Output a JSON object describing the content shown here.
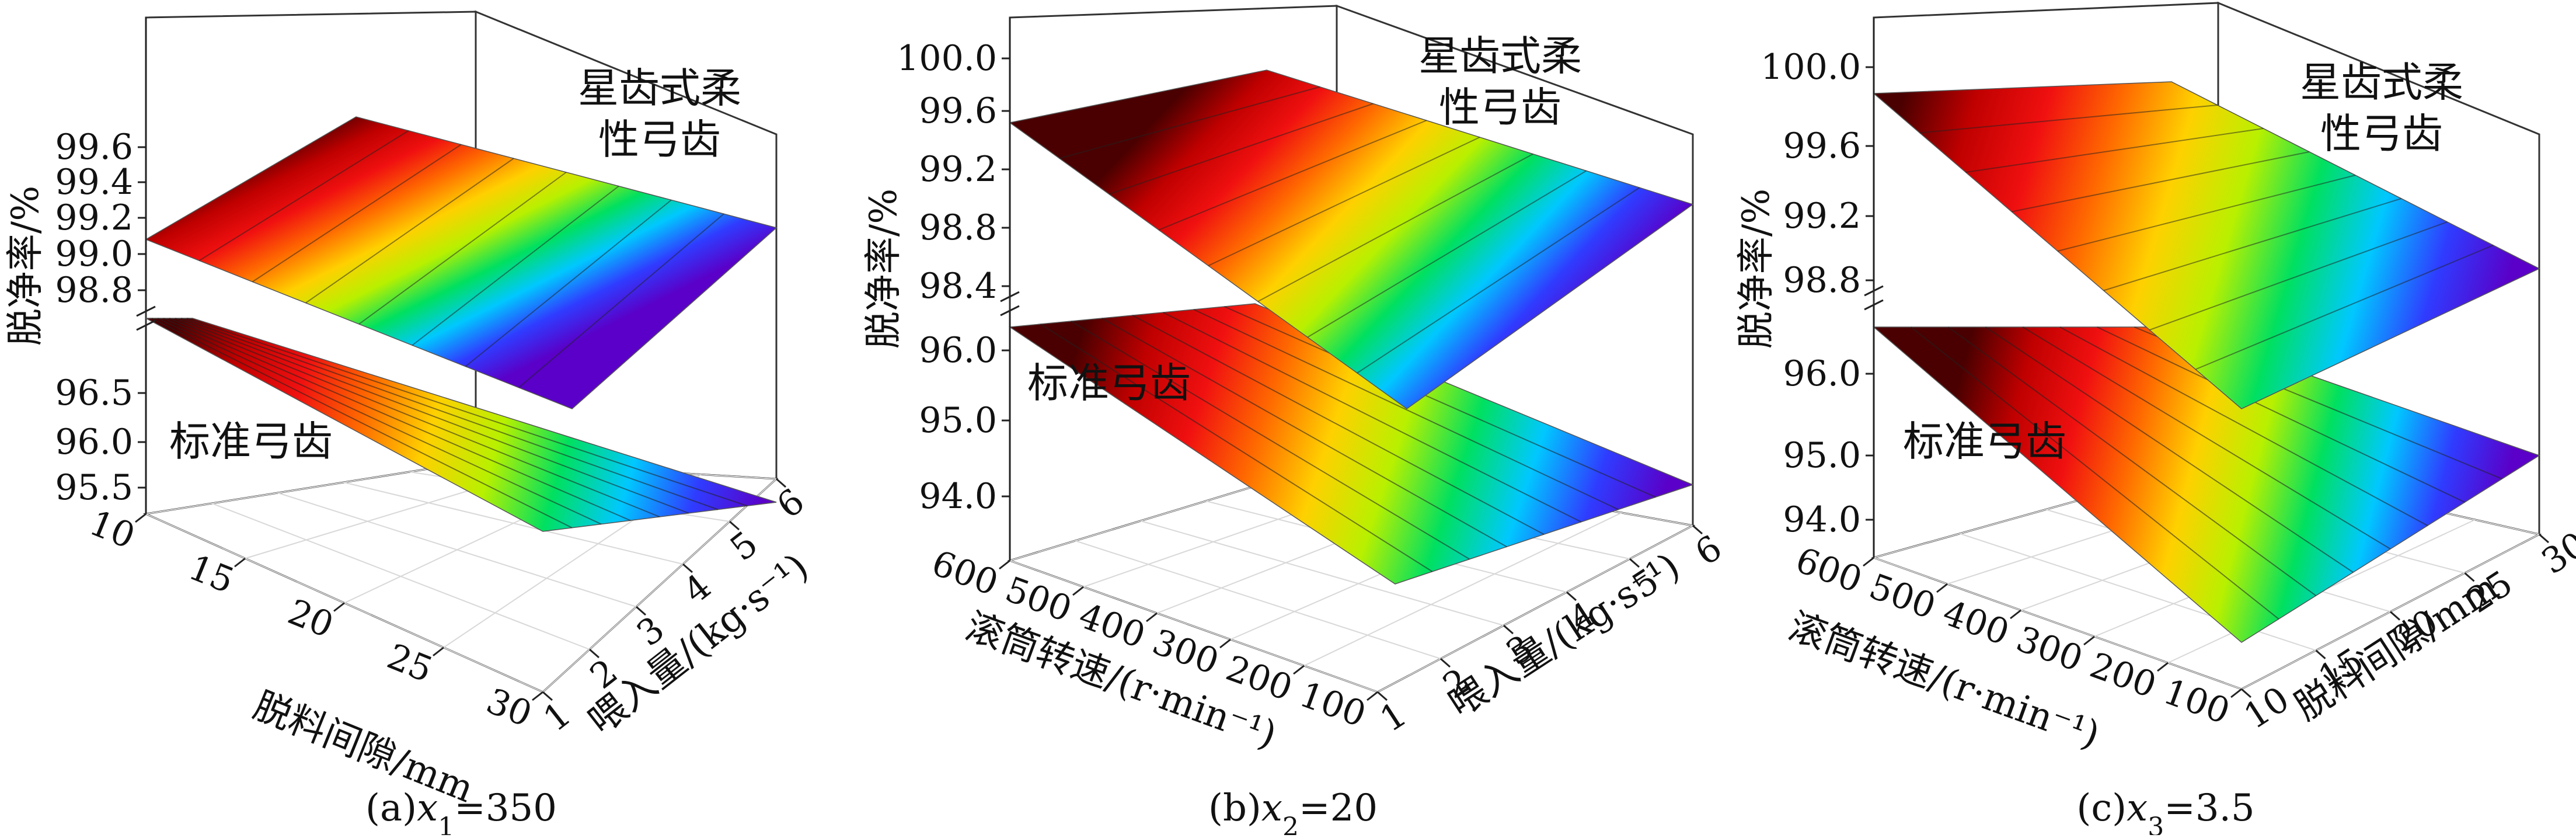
{
  "colorscale": [
    "#5a00c8",
    "#2f3cff",
    "#00c8ff",
    "#00e060",
    "#b8f000",
    "#ffd000",
    "#ff6a00",
    "#f01010",
    "#c00000",
    "#4a0000"
  ],
  "chart_data": [
    {
      "type": "surface3d",
      "caption": "(a)x1=350",
      "caption_parts": {
        "prefix": "(a)",
        "var": "x",
        "sub": "1",
        "suffix": "=350"
      },
      "zlabel": "脱净率/%",
      "xlabel": "脱料间隙/mm",
      "ylabel": "喂入量/(kg·s⁻¹)",
      "x_ticks": [
        "10",
        "15",
        "20",
        "25",
        "30"
      ],
      "y_ticks": [
        "1",
        "2",
        "3",
        "4",
        "5",
        "6"
      ],
      "z_ticks_upper": [
        "98.8",
        "99.0",
        "99.2",
        "99.4",
        "99.6"
      ],
      "z_ticks_lower": [
        "95.5",
        "96.0",
        "96.5"
      ],
      "surfaces": [
        {
          "label": "星齿式柔性弓齿",
          "label_lines": [
            "星齿式柔",
            "性弓齿"
          ],
          "zrange": [
            98.6,
            99.45
          ]
        },
        {
          "label": "标准弓齿",
          "label_lines": [
            "标准弓齿"
          ],
          "zrange": [
            95.2,
            96.7
          ]
        }
      ]
    },
    {
      "type": "surface3d",
      "caption": "(b)x2=20",
      "caption_parts": {
        "prefix": "(b)",
        "var": "x",
        "sub": "2",
        "suffix": "=20"
      },
      "zlabel": "脱净率/%",
      "xlabel": "滚筒转速/(r·min⁻¹)",
      "ylabel": "喂入量/(kg·s⁻¹)",
      "x_ticks": [
        "600",
        "500",
        "400",
        "300",
        "200",
        "100"
      ],
      "y_ticks": [
        "1",
        "2",
        "3",
        "4",
        "5",
        "6"
      ],
      "z_ticks_upper": [
        "98.4",
        "98.8",
        "99.2",
        "99.6",
        "100.0"
      ],
      "z_ticks_lower": [
        "94.0",
        "95.0",
        "96.0"
      ],
      "surfaces": [
        {
          "label": "星齿式柔性弓齿",
          "label_lines": [
            "星齿式柔",
            "性弓齿"
          ],
          "zrange": [
            98.0,
            99.7
          ]
        },
        {
          "label": "标准弓齿",
          "label_lines": [
            "标准弓齿"
          ],
          "zrange": [
            93.6,
            96.4
          ]
        }
      ]
    },
    {
      "type": "surface3d",
      "caption": "(c)x3=3.5",
      "caption_parts": {
        "prefix": "(c)",
        "var": "x",
        "sub": "3",
        "suffix": "=3.5"
      },
      "zlabel": "脱净率/%",
      "xlabel": "滚筒转速/(r·min⁻¹)",
      "ylabel": "脱料间隙/mm",
      "x_ticks": [
        "600",
        "500",
        "400",
        "300",
        "200",
        "100"
      ],
      "y_ticks": [
        "10",
        "15",
        "20",
        "25",
        "30"
      ],
      "z_ticks_upper": [
        "98.8",
        "99.2",
        "99.6",
        "100.0"
      ],
      "z_ticks_lower": [
        "94.0",
        "95.0",
        "96.0"
      ],
      "surfaces": [
        {
          "label": "星齿式柔性弓齿",
          "label_lines": [
            "星齿式柔",
            "性弓齿"
          ],
          "zrange": [
            98.5,
            99.8
          ]
        },
        {
          "label": "标准弓齿",
          "label_lines": [
            "标准弓齿"
          ],
          "zrange": [
            93.6,
            96.3
          ]
        }
      ]
    }
  ]
}
